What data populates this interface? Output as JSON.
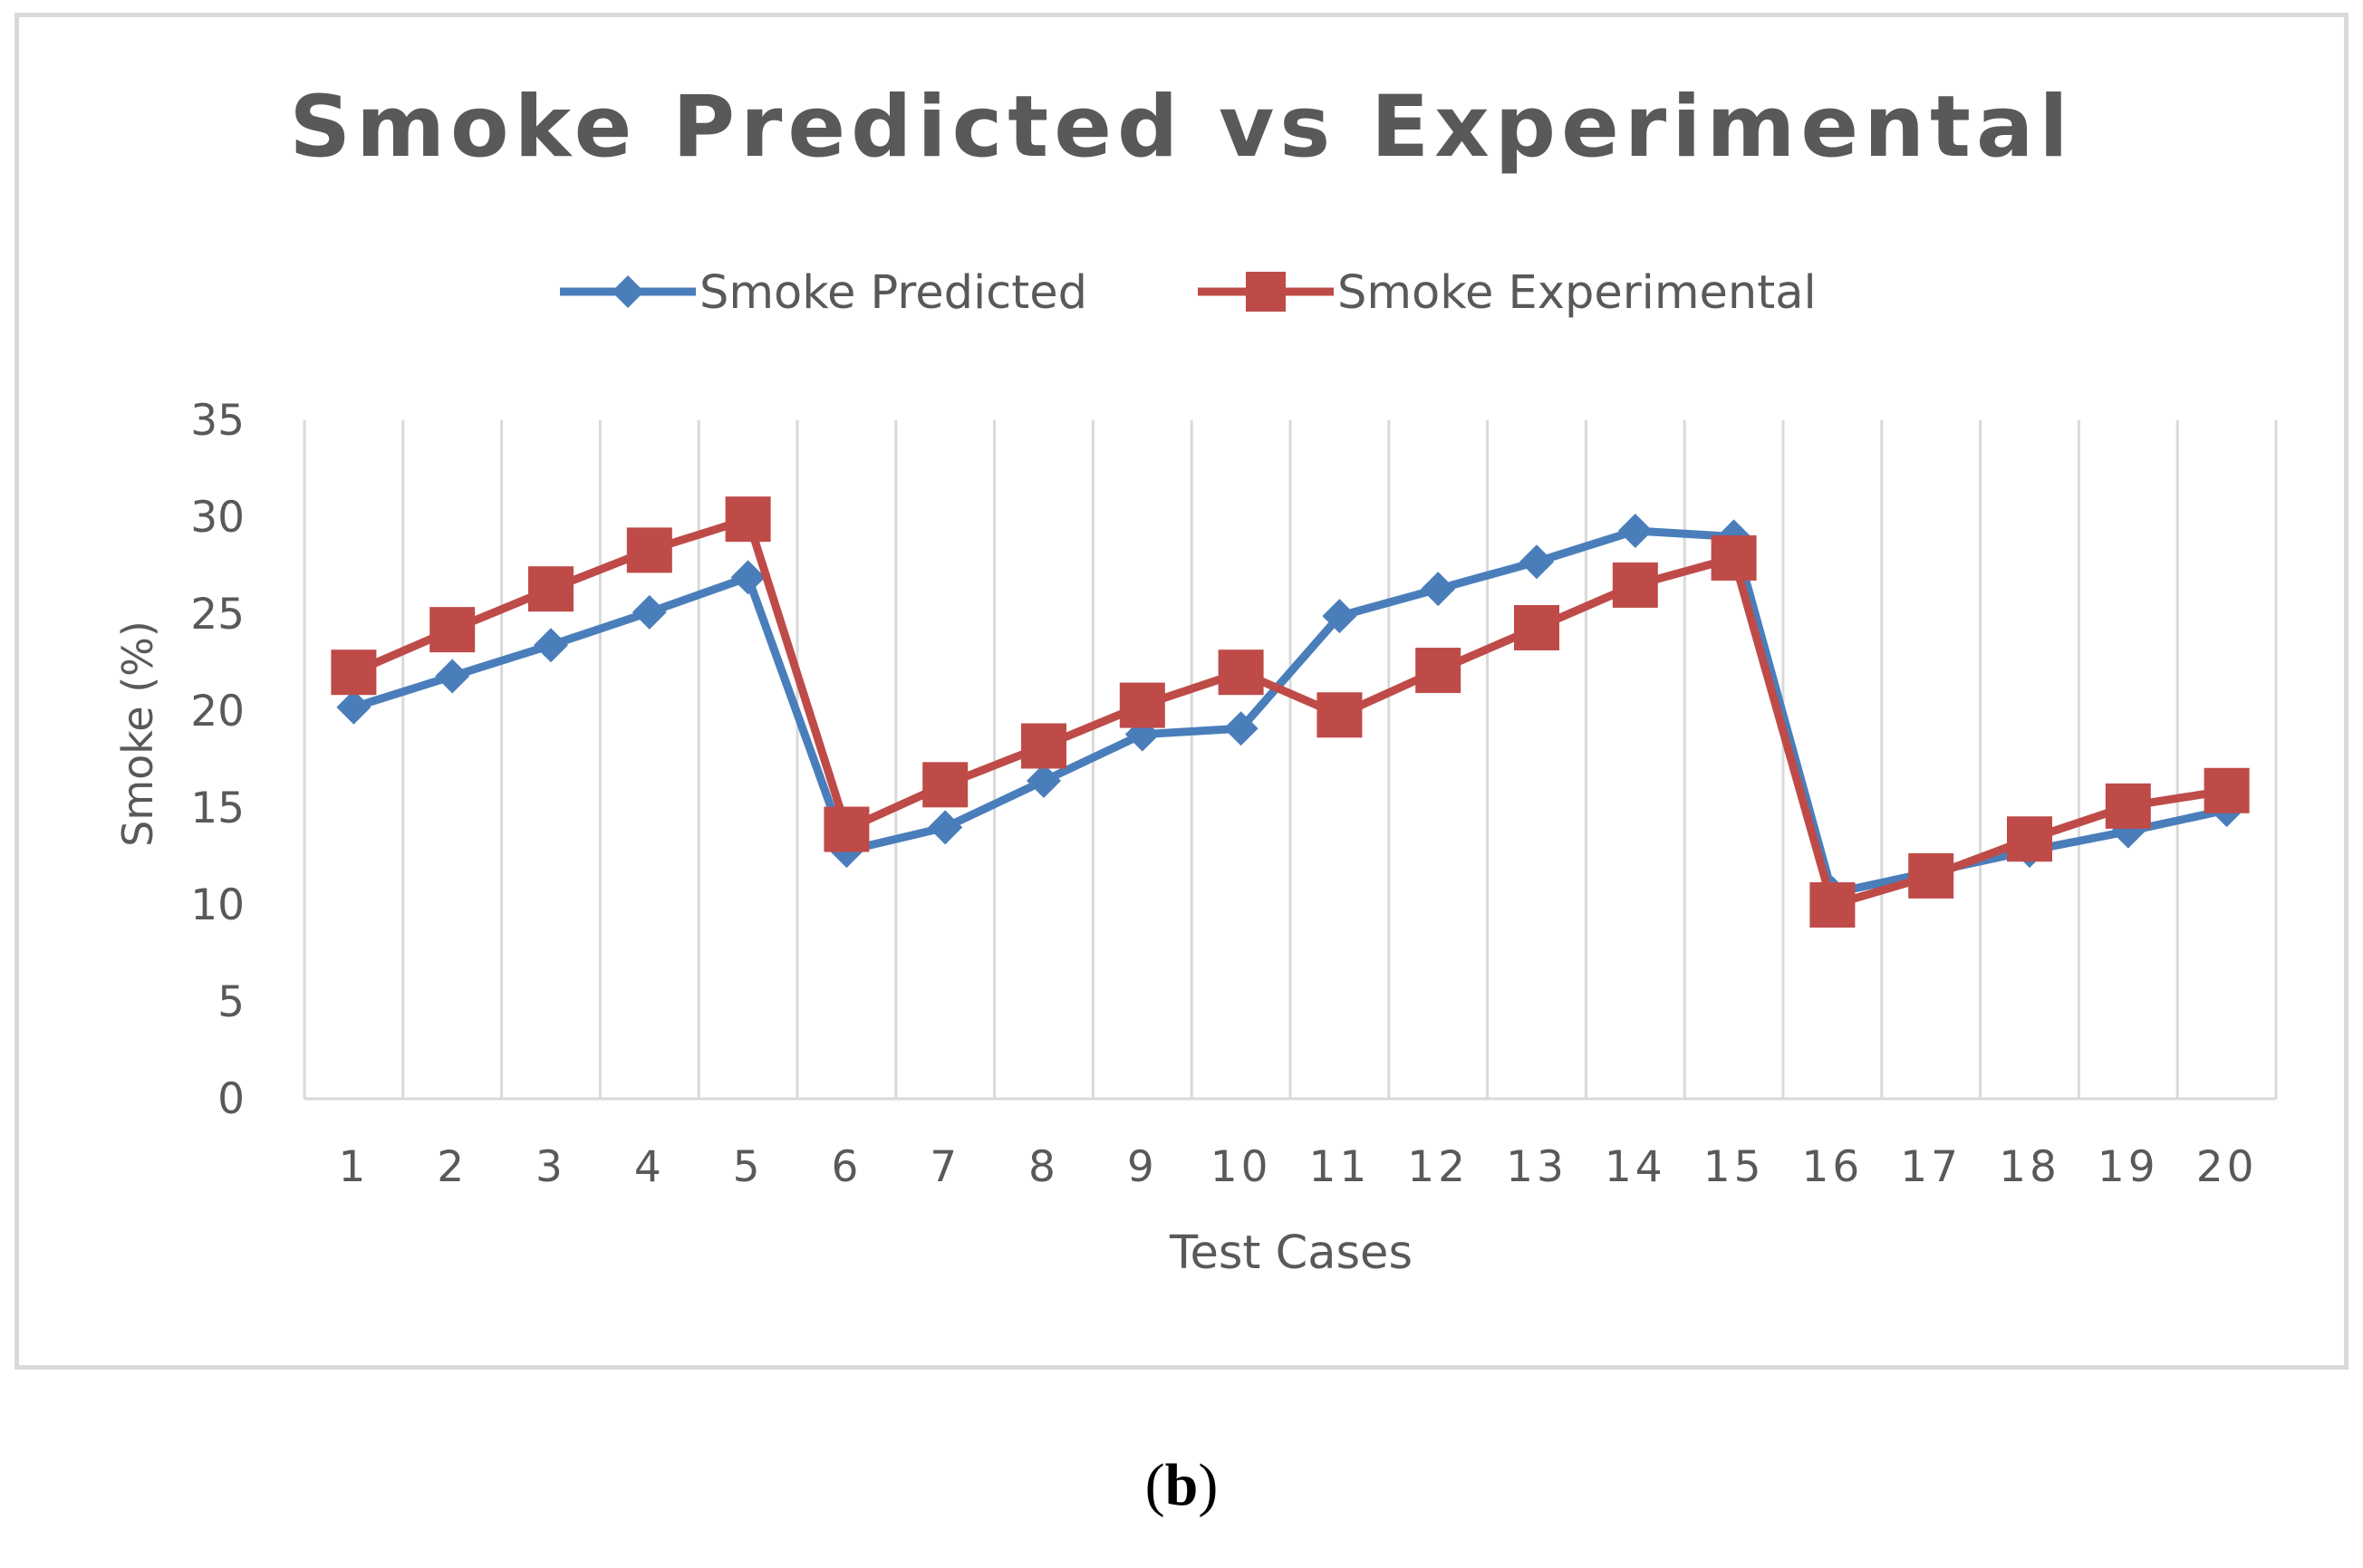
{
  "chart_data": {
    "type": "line",
    "title": "Smoke Predicted vs Experimental",
    "xlabel": "Test Cases",
    "ylabel": "Smoke (%)",
    "categories": [
      "1",
      "2",
      "3",
      "4",
      "5",
      "6",
      "7",
      "8",
      "9",
      "10",
      "11",
      "12",
      "13",
      "14",
      "15",
      "16",
      "17",
      "18",
      "19",
      "20"
    ],
    "ylim": [
      0,
      35
    ],
    "yticks": [
      0,
      5,
      10,
      15,
      20,
      25,
      30,
      35
    ],
    "grid": "vertical",
    "legend": "top-center",
    "series": [
      {
        "name": "Smoke Predicted",
        "color": "#4a7ebb",
        "marker": "diamond",
        "values": [
          20.2,
          21.8,
          23.4,
          25.1,
          26.9,
          12.8,
          14.0,
          16.4,
          18.8,
          19.1,
          24.9,
          26.3,
          27.7,
          29.3,
          29.0,
          10.6,
          11.7,
          12.8,
          13.8,
          14.9
        ]
      },
      {
        "name": "Smoke Experimental",
        "color": "#be4b48",
        "marker": "square",
        "values": [
          22.0,
          24.2,
          26.3,
          28.3,
          29.9,
          13.9,
          16.2,
          18.2,
          20.3,
          22.0,
          19.8,
          22.1,
          24.3,
          26.5,
          27.9,
          10.0,
          11.5,
          13.4,
          15.1,
          15.9
        ]
      }
    ]
  },
  "caption": {
    "open": "(",
    "letter": "b",
    "close": ")"
  }
}
